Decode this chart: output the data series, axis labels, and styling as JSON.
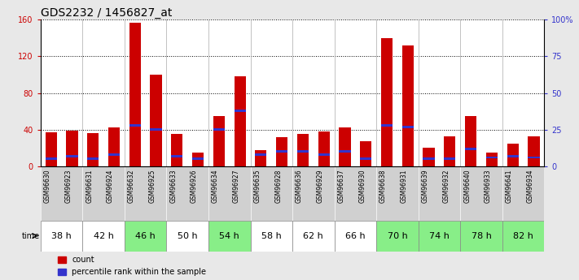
{
  "title": "GDS2232 / 1456827_at",
  "samples": [
    "GSM96630",
    "GSM96923",
    "GSM96631",
    "GSM96924",
    "GSM96632",
    "GSM96925",
    "GSM96633",
    "GSM96926",
    "GSM96634",
    "GSM96927",
    "GSM96635",
    "GSM96928",
    "GSM96636",
    "GSM96929",
    "GSM96637",
    "GSM96930",
    "GSM96638",
    "GSM96931",
    "GSM96639",
    "GSM96932",
    "GSM96640",
    "GSM96933",
    "GSM96641",
    "GSM96934"
  ],
  "time_groups": [
    {
      "label": "38 h",
      "green": false
    },
    {
      "label": "42 h",
      "green": false
    },
    {
      "label": "46 h",
      "green": true
    },
    {
      "label": "50 h",
      "green": false
    },
    {
      "label": "54 h",
      "green": true
    },
    {
      "label": "58 h",
      "green": false
    },
    {
      "label": "62 h",
      "green": false
    },
    {
      "label": "66 h",
      "green": false
    },
    {
      "label": "70 h",
      "green": true
    },
    {
      "label": "74 h",
      "green": true
    },
    {
      "label": "78 h",
      "green": true
    },
    {
      "label": "82 h",
      "green": true
    }
  ],
  "count_values": [
    37,
    39,
    36,
    42,
    157,
    100,
    35,
    15,
    55,
    98,
    18,
    32,
    35,
    38,
    42,
    27,
    140,
    132,
    20,
    33,
    55,
    15,
    25,
    33
  ],
  "percentile_values": [
    5,
    7,
    5,
    8,
    28,
    25,
    7,
    5,
    25,
    38,
    8,
    10,
    10,
    8,
    10,
    5,
    28,
    27,
    5,
    5,
    12,
    6,
    7,
    6
  ],
  "ylim_left": [
    0,
    160
  ],
  "ylim_right": [
    0,
    100
  ],
  "yticks_left": [
    0,
    40,
    80,
    120,
    160
  ],
  "yticks_right": [
    0,
    25,
    50,
    75,
    100
  ],
  "ytick_labels_right": [
    "0",
    "25",
    "50",
    "75",
    "100%"
  ],
  "bar_color_red": "#cc0000",
  "bar_color_blue": "#3333cc",
  "bar_width": 0.55,
  "bg_color_plot": "#ffffff",
  "bg_color_fig": "#e8e8e8",
  "grid_color": "#000000",
  "sample_row_bg": "#d0d0d0",
  "time_row_bg_white": "#ffffff",
  "time_row_bg_green": "#88ee88",
  "title_fontsize": 10,
  "tick_fontsize": 7,
  "sample_fontsize": 5.5,
  "time_label_fontsize": 8,
  "legend_fontsize": 7
}
